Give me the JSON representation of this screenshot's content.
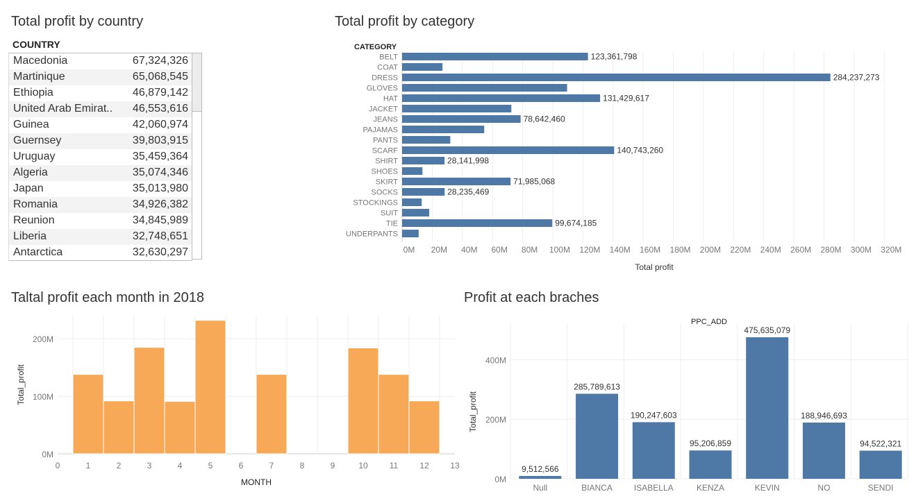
{
  "titles": {
    "country": "Total profit by country",
    "category": "Total profit by category",
    "month": "Taltal profit each month in 2018",
    "branches": "Profit at each braches"
  },
  "country_table": {
    "header": "COUNTRY",
    "rows": [
      {
        "name": "Macedonia",
        "value": "67,324,326"
      },
      {
        "name": "Martinique",
        "value": "65,068,545"
      },
      {
        "name": "Ethiopia",
        "value": "46,879,142"
      },
      {
        "name": "United Arab Emirat..",
        "value": "46,553,616"
      },
      {
        "name": "Guinea",
        "value": "42,060,974"
      },
      {
        "name": "Guernsey",
        "value": "39,803,915"
      },
      {
        "name": "Uruguay",
        "value": "35,459,364"
      },
      {
        "name": "Algeria",
        "value": "35,074,346"
      },
      {
        "name": "Japan",
        "value": "35,013,980"
      },
      {
        "name": "Romania",
        "value": "34,926,382"
      },
      {
        "name": "Reunion",
        "value": "34,845,989"
      },
      {
        "name": "Liberia",
        "value": "32,748,651"
      },
      {
        "name": "Antarctica",
        "value": "32,630,297"
      }
    ]
  },
  "colors": {
    "blue": "#4e79a7",
    "orange": "#f8a957",
    "grid": "#eeeeee",
    "axis_text": "#777777"
  },
  "chart_data": [
    {
      "id": "category",
      "type": "bar",
      "orientation": "horizontal",
      "title": "Total profit by category",
      "category_label": "CATEGORY",
      "xlabel": "Total profit",
      "xlim": [
        0,
        330000000
      ],
      "x_ticks": [
        0,
        20000000,
        40000000,
        60000000,
        80000000,
        100000000,
        120000000,
        140000000,
        160000000,
        180000000,
        200000000,
        220000000,
        240000000,
        260000000,
        280000000,
        300000000,
        320000000
      ],
      "x_tick_labels": [
        "0M",
        "20M",
        "40M",
        "60M",
        "80M",
        "100M",
        "120M",
        "140M",
        "160M",
        "180M",
        "200M",
        "220M",
        "240M",
        "260M",
        "280M",
        "300M",
        "320M"
      ],
      "categories": [
        "BELT",
        "COAT",
        "DRESS",
        "GLOVES",
        "HAT",
        "JACKET",
        "JEANS",
        "PAJAMAS",
        "PANTS",
        "SCARF",
        "SHIRT",
        "SHOES",
        "SKIRT",
        "SOCKS",
        "STOCKINGS",
        "SUIT",
        "TIE",
        "UNDERPANTS"
      ],
      "values": [
        123361798,
        26800000,
        284237273,
        109500000,
        131429617,
        72500000,
        78642460,
        54500000,
        32000000,
        140743260,
        28141998,
        13500000,
        71985068,
        28235469,
        13000000,
        18000000,
        99674185,
        11000000
      ],
      "data_labels": [
        "123,361,798",
        "",
        "284,237,273",
        "",
        "131,429,617",
        "",
        "78,642,460",
        "",
        "",
        "140,743,260",
        "28,141,998",
        "",
        "71,985,068",
        "28,235,469",
        "",
        "",
        "99,674,185",
        ""
      ]
    },
    {
      "id": "month",
      "type": "bar",
      "title": "Taltal profit each month in 2018",
      "xlabel": "MONTH",
      "ylabel": "Total_profit",
      "xlim": [
        0,
        13
      ],
      "ylim": [
        0,
        240000000
      ],
      "x_ticks": [
        0,
        1,
        2,
        3,
        4,
        5,
        6,
        7,
        8,
        9,
        10,
        11,
        12,
        13
      ],
      "y_ticks": [
        0,
        100000000,
        200000000
      ],
      "y_tick_labels": [
        "0M",
        "100M",
        "200M"
      ],
      "x": [
        1,
        2,
        3,
        4,
        5,
        7,
        10,
        11,
        12
      ],
      "values": [
        138000000,
        92000000,
        185000000,
        91000000,
        232000000,
        138000000,
        184000000,
        138000000,
        92000000
      ]
    },
    {
      "id": "branches",
      "type": "bar",
      "title": "Profit at each braches",
      "column_header": "PPC_ADD",
      "ylabel": "Total_profit",
      "ylim": [
        0,
        520000000
      ],
      "y_ticks": [
        0,
        200000000,
        400000000
      ],
      "y_tick_labels": [
        "0M",
        "200M",
        "400M"
      ],
      "categories": [
        "Null",
        "BIANCA",
        "ISABELLA",
        "KENZA",
        "KEVIN",
        "NO",
        "SENDI"
      ],
      "values": [
        9512566,
        285789613,
        190247603,
        95206859,
        475635079,
        188946693,
        94522321
      ],
      "data_labels": [
        "9,512,566",
        "285,789,613",
        "190,247,603",
        "95,206,859",
        "475,635,079",
        "188,946,693",
        "94,522,321"
      ]
    }
  ]
}
